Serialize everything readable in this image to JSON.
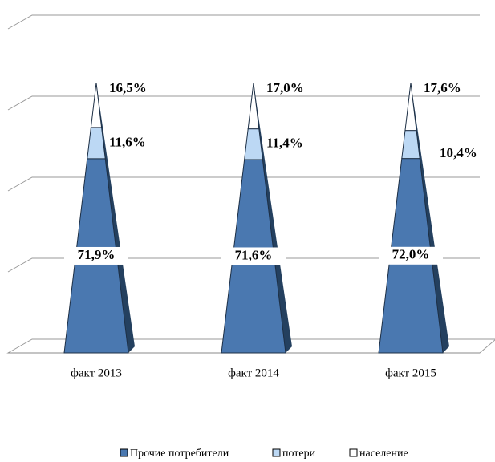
{
  "chart_data": {
    "type": "stacked-pyramid",
    "categories": [
      "факт 2013",
      "факт 2014",
      "факт 2015"
    ],
    "series": [
      {
        "name": "Прочие потребители",
        "color": "#4a78b0",
        "values": [
          71.9,
          71.6,
          72.0
        ],
        "value_labels": [
          "71,9%",
          "71,6%",
          "72,0%"
        ]
      },
      {
        "name": "потери",
        "color": "#bcd8f4",
        "values": [
          11.6,
          11.4,
          10.4
        ],
        "value_labels": [
          "11,6%",
          "11,4%",
          "10,4%"
        ]
      },
      {
        "name": "население",
        "color": "#ffffff",
        "values": [
          16.5,
          17.0,
          17.6
        ],
        "value_labels": [
          "16,5%",
          "17,0%",
          "17,6%"
        ]
      }
    ],
    "ylim": [
      0,
      120
    ],
    "yticks": [
      0,
      30,
      60,
      90,
      120
    ],
    "grid": true,
    "legend": "bottom"
  }
}
